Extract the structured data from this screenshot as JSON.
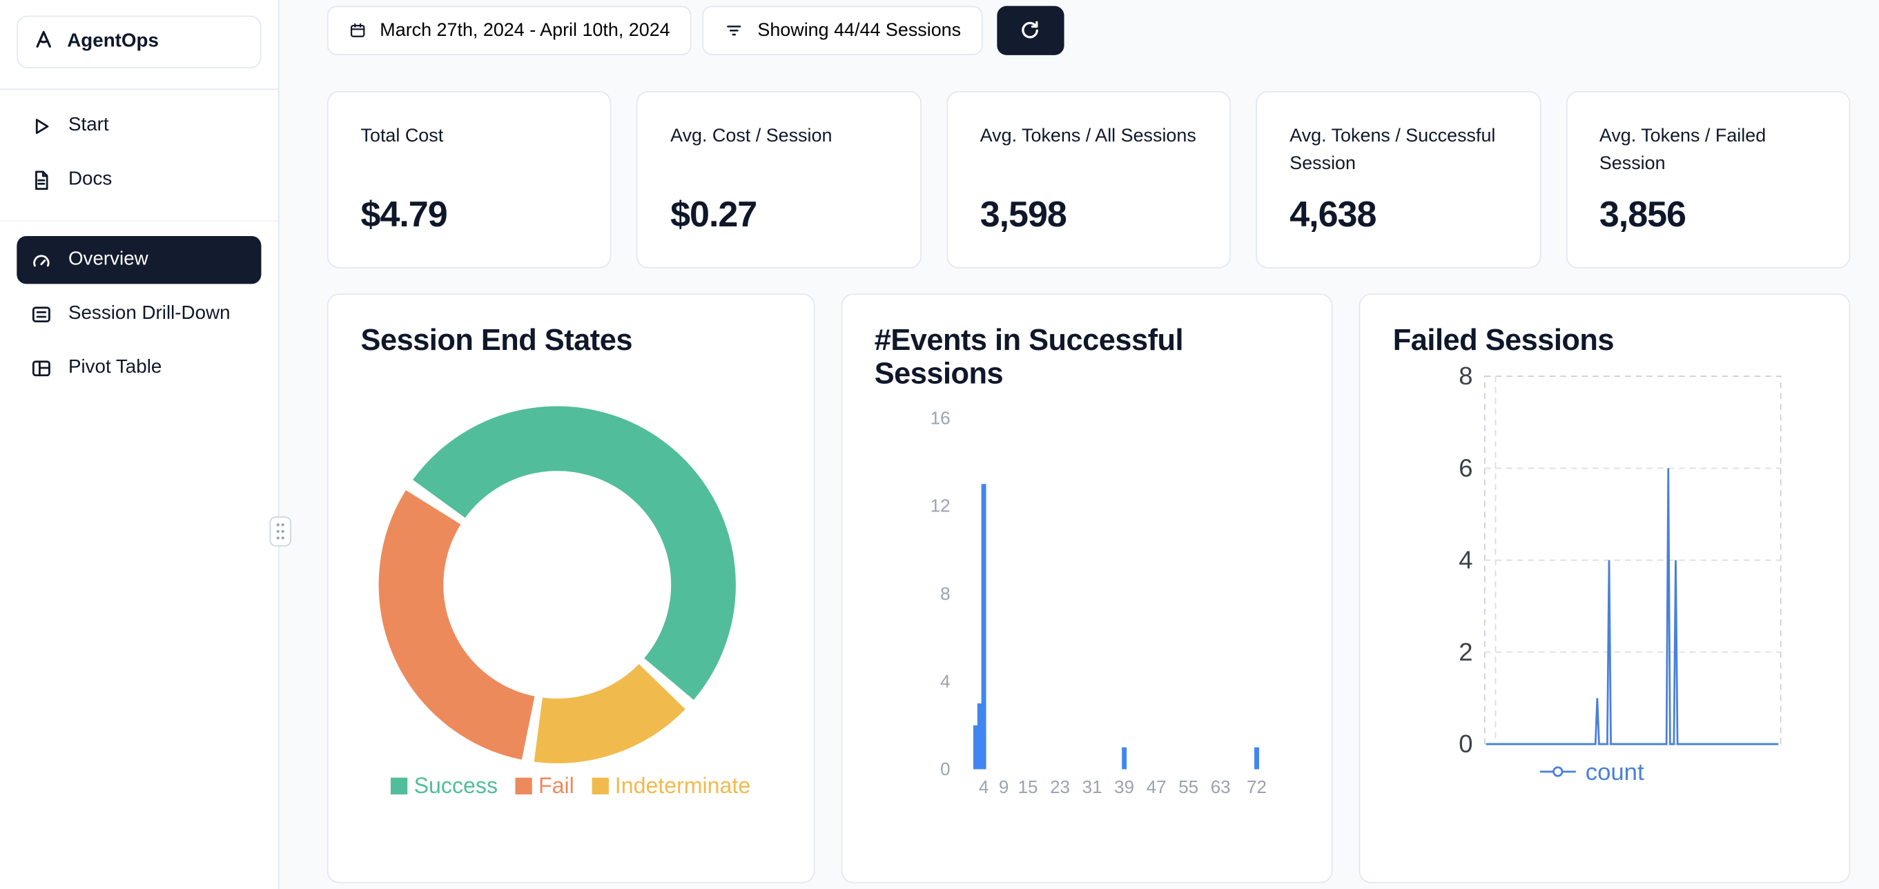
{
  "app": {
    "name": "AgentOps"
  },
  "theme": {
    "accent_dark": "#131b2e",
    "border": "#e2e8f0",
    "background": "#f8fafc",
    "bar_blue": "#4186F0",
    "line_blue": "#4A80D9"
  },
  "sidebar": {
    "items": [
      {
        "label": "Start",
        "icon": "play-icon",
        "active": false
      },
      {
        "label": "Docs",
        "icon": "document-icon",
        "active": false
      },
      {
        "label": "Overview",
        "icon": "gauge-icon",
        "active": true
      },
      {
        "label": "Session Drill-Down",
        "icon": "list-icon",
        "active": false
      },
      {
        "label": "Pivot Table",
        "icon": "table-icon",
        "active": false
      }
    ]
  },
  "toolbar": {
    "date_range": "March 27th, 2024 - April 10th, 2024",
    "sessions_filter": "Showing 44/44 Sessions"
  },
  "stats": [
    {
      "label": "Total Cost",
      "value": "$4.79"
    },
    {
      "label": "Avg. Cost / Session",
      "value": "$0.27"
    },
    {
      "label": "Avg. Tokens / All Sessions",
      "value": "3,598"
    },
    {
      "label": "Avg. Tokens / Successful Session",
      "value": "4,638"
    },
    {
      "label": "Avg. Tokens / Failed Session",
      "value": "3,856"
    }
  ],
  "chart_data": [
    {
      "type": "pie",
      "title": "Session End States",
      "labels": [
        "Success",
        "Fail",
        "Indeterminate"
      ],
      "values": [
        23,
        14,
        7
      ],
      "values_note": "estimated from arc angles; 44 total sessions shown in filter",
      "start_angle_deg": 304,
      "segments_clockwise": [
        {
          "label": "Success",
          "value": 23,
          "color": "#52BD9A"
        },
        {
          "label": "Indeterminate",
          "value": 7,
          "color": "#F0BA4D"
        },
        {
          "label": "Fail",
          "value": 14,
          "color": "#ED8A5C"
        }
      ],
      "legend": [
        {
          "label": "Success",
          "color": "#52BD9A"
        },
        {
          "label": "Fail",
          "color": "#ED8A5C"
        },
        {
          "label": "Indeterminate",
          "color": "#F0BA4D"
        }
      ],
      "legend_position": "bottom"
    },
    {
      "type": "bar",
      "title": "#Events in Successful Sessions",
      "xlabel": "",
      "ylabel": "",
      "ylim": [
        0,
        16
      ],
      "xlim": [
        0,
        78
      ],
      "yticks": [
        0,
        4,
        8,
        12,
        16
      ],
      "xticks": [
        4,
        9,
        15,
        23,
        31,
        39,
        47,
        55,
        63,
        72
      ],
      "grid": false,
      "bar_color": "#4186F0",
      "bars": [
        {
          "x": 2,
          "count": 2
        },
        {
          "x": 3,
          "count": 3
        },
        {
          "x": 4,
          "count": 13
        },
        {
          "x": 39,
          "count": 1
        },
        {
          "x": 72,
          "count": 1
        }
      ]
    },
    {
      "type": "line",
      "title": "Failed Sessions",
      "ylim": [
        0,
        8
      ],
      "yticks": [
        0,
        2,
        4,
        6,
        8
      ],
      "grid": "dashed",
      "baseline": 0,
      "series": [
        {
          "name": "count",
          "color": "#4A80D9",
          "spikes": [
            {
              "x_frac": 0.38,
              "count": 1
            },
            {
              "x_frac": 0.42,
              "count": 4
            },
            {
              "x_frac": 0.62,
              "count": 6
            },
            {
              "x_frac": 0.645,
              "count": 4
            }
          ]
        }
      ],
      "legend": {
        "label": "count",
        "position": "bottom"
      }
    }
  ]
}
